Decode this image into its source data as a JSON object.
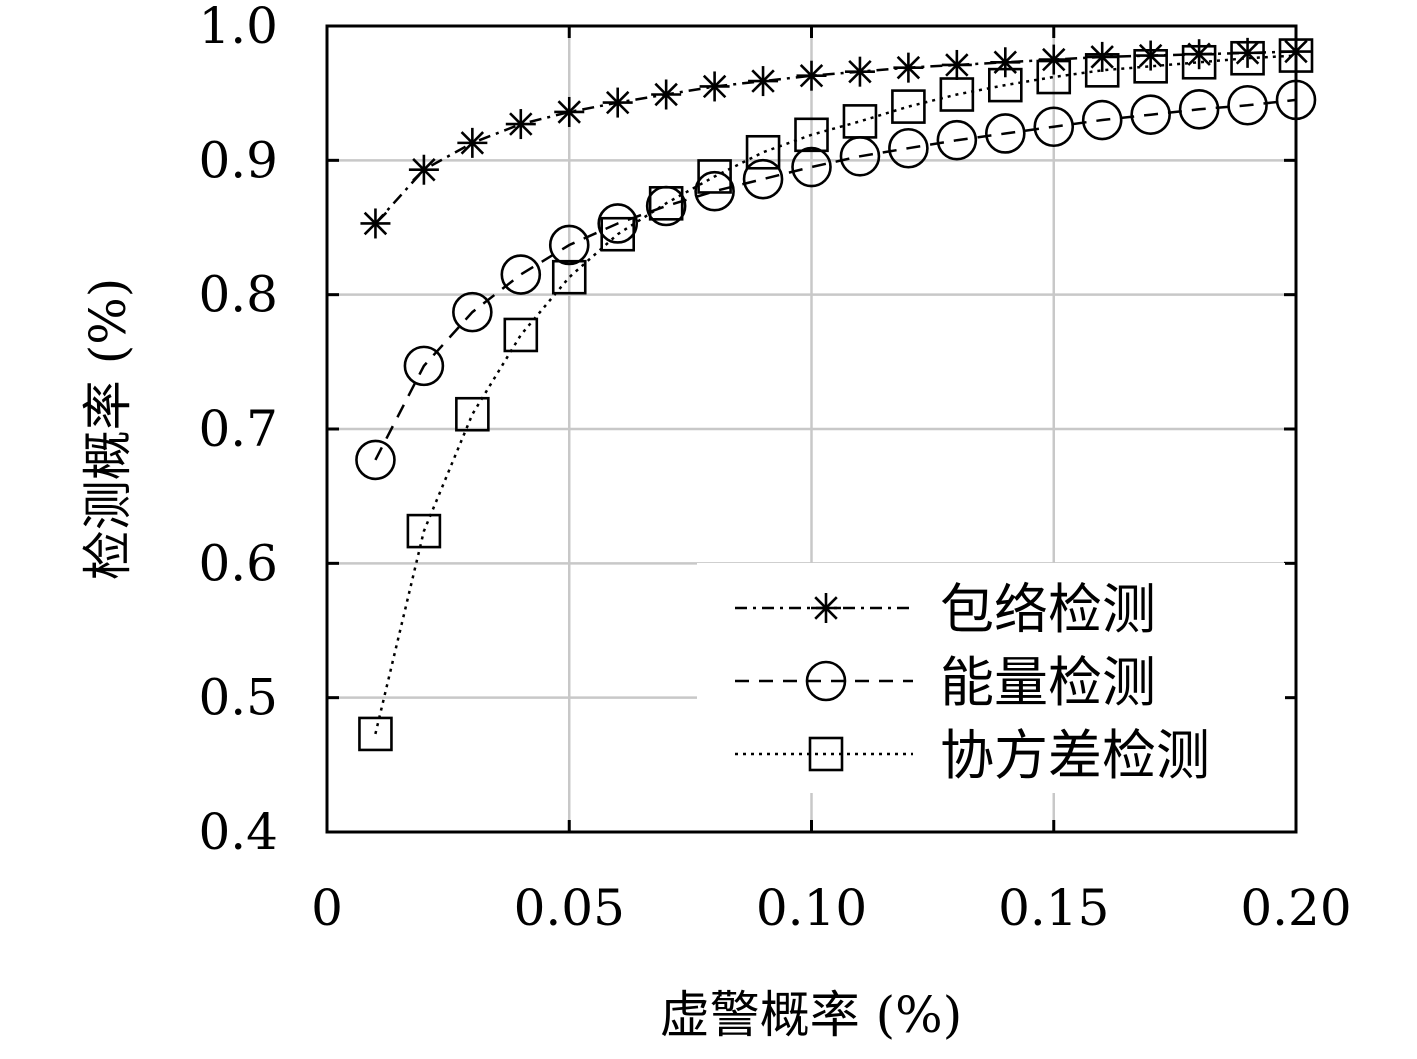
{
  "chart_data": {
    "type": "line",
    "title": "",
    "xlabel": "虚警概率 (%)",
    "ylabel": "检测概率 (%)",
    "xlim": [
      0,
      0.2
    ],
    "ylim": [
      0.4,
      1.0
    ],
    "x_ticks": [
      0,
      0.05,
      0.1,
      0.15,
      0.2
    ],
    "x_tick_labels": [
      "0",
      "0.05",
      "0.10",
      "0.15",
      "0.20"
    ],
    "y_ticks": [
      0.4,
      0.5,
      0.6,
      0.7,
      0.8,
      0.9,
      1.0
    ],
    "y_tick_labels": [
      "0.4",
      "0.5",
      "0.6",
      "0.7",
      "0.8",
      "0.9",
      "1.0"
    ],
    "grid": true,
    "legend_position": "bottom-right",
    "x": [
      0.01,
      0.02,
      0.03,
      0.04,
      0.05,
      0.06,
      0.07,
      0.08,
      0.09,
      0.1,
      0.11,
      0.12,
      0.13,
      0.14,
      0.15,
      0.16,
      0.17,
      0.18,
      0.19,
      0.2
    ],
    "series": [
      {
        "name": "包络检测",
        "marker": "asterisk",
        "line_style": "dashdot",
        "values": [
          0.853,
          0.893,
          0.913,
          0.927,
          0.936,
          0.943,
          0.949,
          0.955,
          0.959,
          0.963,
          0.966,
          0.969,
          0.971,
          0.973,
          0.975,
          0.977,
          0.978,
          0.979,
          0.98,
          0.981
        ]
      },
      {
        "name": "能量检测",
        "marker": "circle",
        "line_style": "dashed",
        "values": [
          0.677,
          0.747,
          0.787,
          0.815,
          0.837,
          0.853,
          0.866,
          0.877,
          0.886,
          0.895,
          0.903,
          0.909,
          0.915,
          0.92,
          0.925,
          0.93,
          0.934,
          0.938,
          0.941,
          0.945
        ]
      },
      {
        "name": "协方差检测",
        "marker": "square",
        "line_style": "dotted",
        "values": [
          0.473,
          0.624,
          0.711,
          0.77,
          0.813,
          0.845,
          0.868,
          0.888,
          0.906,
          0.919,
          0.929,
          0.94,
          0.949,
          0.956,
          0.962,
          0.967,
          0.97,
          0.973,
          0.976,
          0.978
        ]
      }
    ]
  }
}
